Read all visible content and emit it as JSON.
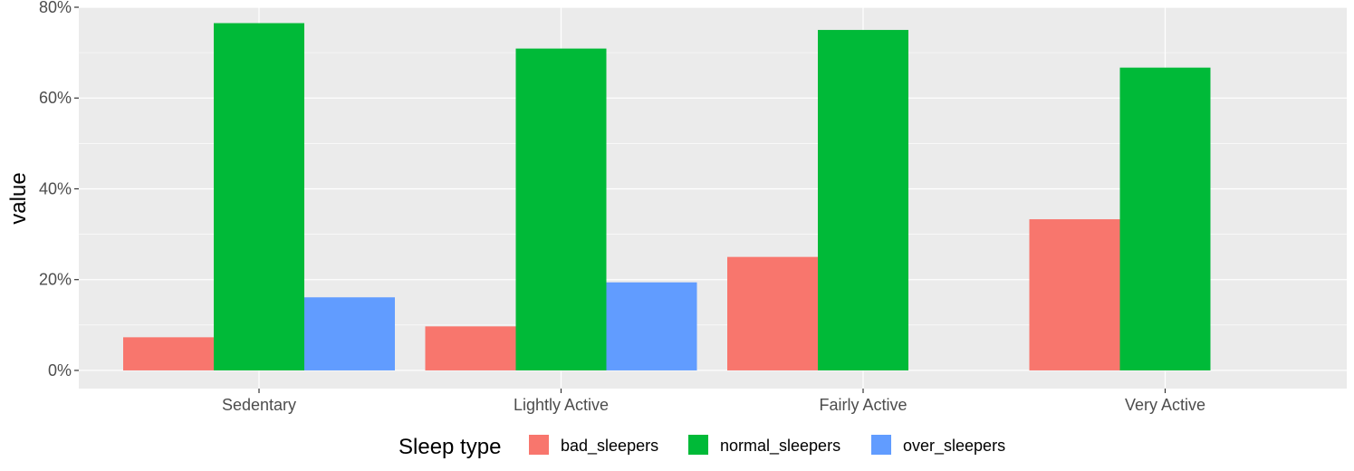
{
  "chart_data": {
    "type": "bar",
    "title": "",
    "xlabel": "",
    "ylabel": "value",
    "categories": [
      "Sedentary",
      "Lightly Active",
      "Fairly Active",
      "Very Active"
    ],
    "series": [
      {
        "name": "bad_sleepers",
        "color": "#F8766D",
        "values": [
          0.073,
          0.097,
          0.25,
          0.333
        ]
      },
      {
        "name": "normal_sleepers",
        "color": "#00BA38",
        "values": [
          0.765,
          0.709,
          0.75,
          0.667
        ]
      },
      {
        "name": "over_sleepers",
        "color": "#619CFF",
        "values": [
          0.161,
          0.194,
          0,
          0
        ]
      }
    ],
    "ylim": [
      -0.04,
      0.8
    ],
    "yticks": [
      0,
      0.2,
      0.4,
      0.6,
      0.8
    ],
    "ytick_labels": [
      "0%",
      "20%",
      "40%",
      "60%",
      "80%"
    ],
    "grid": true,
    "legend": {
      "title": "Sleep type",
      "position": "bottom"
    },
    "panel_background": "#EBEBEB"
  }
}
